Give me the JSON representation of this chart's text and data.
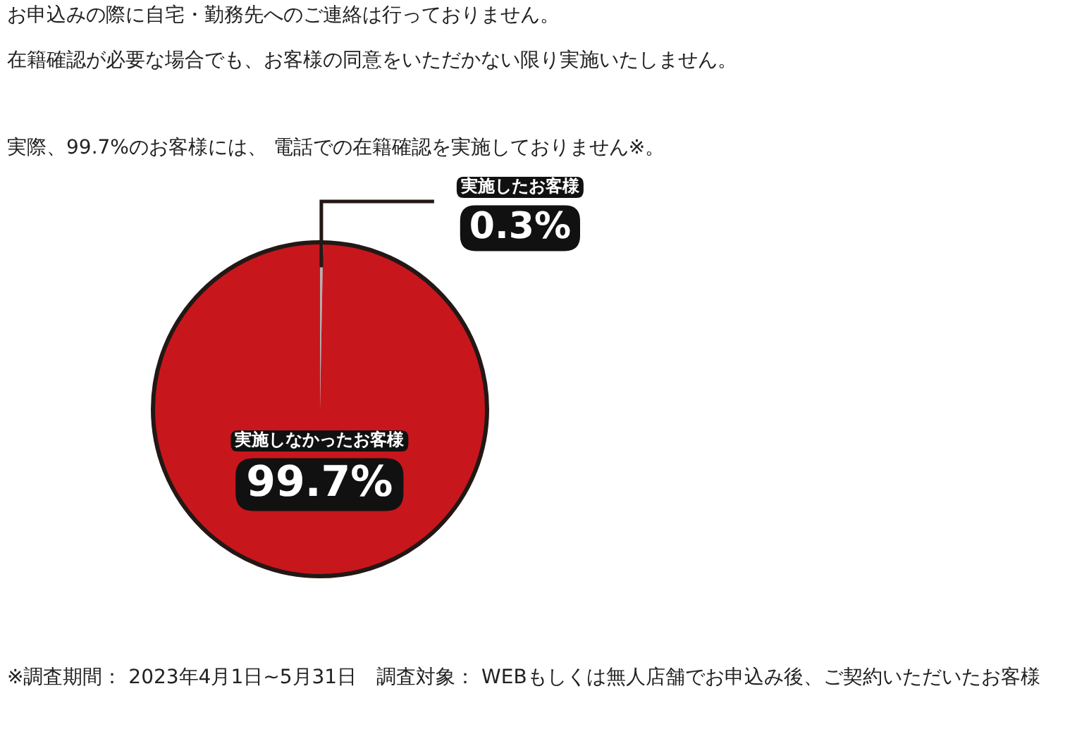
{
  "chart_data": {
    "type": "pie",
    "title": "お申込みの際に自宅・勤務先へのご連絡は行っておりません。",
    "subtitle": "在籍確認が必要な場合でも、お客様の同意をいただかない限り実施いたしません。",
    "annotations": [
      "実際、99.7%のお客様には、 電話での在籍確認を実施しておりません※。",
      "※調査期間： 2023年4月1日~5月31日　調査対象： WEBもしくは無人店舗でお申込み後、ご契約いただいたお客様"
    ],
    "categories": [
      "実施したお客様",
      "実施しなかったお客様"
    ],
    "values": [
      0.3,
      99.7
    ],
    "value_labels": [
      "0.3%",
      "99.7%"
    ],
    "colors": [
      "#b0b0b0",
      "#c8161d"
    ],
    "legend": false
  }
}
